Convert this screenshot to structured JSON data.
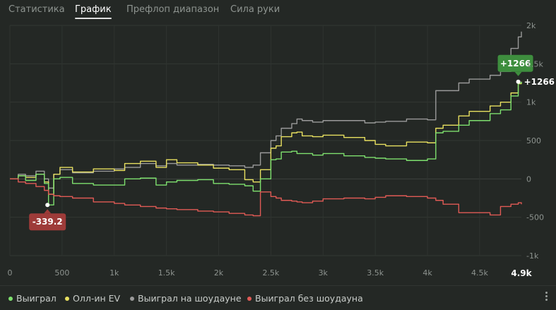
{
  "tabs": [
    {
      "label": "Статистика",
      "active": false
    },
    {
      "label": "График",
      "active": true
    },
    {
      "label": "Префлоп диапазон",
      "active": false
    },
    {
      "label": "Сила руки",
      "active": false
    }
  ],
  "legend": [
    {
      "label": "Выиграл",
      "color": "#7ee06e"
    },
    {
      "label": "Олл-ин EV",
      "color": "#e8e060"
    },
    {
      "label": "Выиграл на шоудауне",
      "color": "#9a9a9a"
    },
    {
      "label": "Выиграл без шоудауна",
      "color": "#e05a55"
    }
  ],
  "chart_data": {
    "type": "line",
    "x_ticks": [
      "0",
      "500",
      "1k",
      "1.5k",
      "2k",
      "2.5k",
      "3k",
      "3.5k",
      "4k",
      "4.5k"
    ],
    "x_tick_values": [
      0,
      500,
      1000,
      1500,
      2000,
      2500,
      3000,
      3500,
      4000,
      4500
    ],
    "x_end_label": "4.9k",
    "y_ticks": [
      "2k",
      "1.5k",
      "1k",
      "500",
      "0",
      "-500",
      "-1k"
    ],
    "y_tick_values": [
      2000,
      1500,
      1000,
      500,
      0,
      -500,
      -1000
    ],
    "xlim": [
      0,
      4900
    ],
    "ylim": [
      -1000,
      2000
    ],
    "grid": true,
    "annotations": {
      "max_label": "+1266",
      "max_value": 1266,
      "max_x": 4870,
      "min_label": "-339.2",
      "min_value": -339.2,
      "min_x": 360,
      "end_label": "+1266"
    },
    "series": [
      {
        "name": "Выиграл на шоудауне",
        "color": "#9a9a9a",
        "x": [
          0,
          80,
          150,
          250,
          330,
          370,
          420,
          480,
          600,
          800,
          1000,
          1100,
          1250,
          1400,
          1500,
          1600,
          1800,
          1950,
          2100,
          2250,
          2330,
          2400,
          2500,
          2550,
          2600,
          2700,
          2750,
          2800,
          2900,
          3000,
          3200,
          3400,
          3500,
          3600,
          3800,
          4000,
          4080,
          4150,
          4300,
          4400,
          4600,
          4700,
          4800,
          4870,
          4900
        ],
        "y": [
          0,
          60,
          40,
          100,
          0,
          -120,
          60,
          120,
          80,
          100,
          130,
          150,
          200,
          170,
          200,
          180,
          190,
          180,
          170,
          150,
          180,
          340,
          500,
          560,
          660,
          720,
          780,
          760,
          740,
          760,
          760,
          730,
          740,
          750,
          780,
          770,
          1150,
          1150,
          1250,
          1300,
          1350,
          1400,
          1700,
          1850,
          1920
        ]
      },
      {
        "name": "Олл-ин EV",
        "color": "#e8e060",
        "x": [
          0,
          80,
          150,
          250,
          330,
          370,
          420,
          480,
          600,
          800,
          1000,
          1100,
          1250,
          1400,
          1500,
          1600,
          1800,
          1950,
          2100,
          2250,
          2330,
          2400,
          2500,
          2550,
          2600,
          2700,
          2750,
          2800,
          2900,
          3000,
          3200,
          3400,
          3500,
          3600,
          3800,
          4000,
          4080,
          4150,
          4300,
          4400,
          4600,
          4700,
          4800,
          4870,
          4900
        ],
        "y": [
          0,
          40,
          20,
          60,
          -40,
          -200,
          60,
          150,
          90,
          130,
          110,
          200,
          230,
          150,
          250,
          210,
          180,
          140,
          120,
          -10,
          -40,
          120,
          400,
          430,
          550,
          600,
          610,
          560,
          550,
          570,
          540,
          500,
          450,
          430,
          480,
          470,
          660,
          700,
          820,
          880,
          950,
          1000,
          1120,
          1240,
          1266
        ]
      },
      {
        "name": "Выиграл",
        "color": "#7ee06e",
        "x": [
          0,
          80,
          150,
          250,
          330,
          370,
          420,
          480,
          600,
          800,
          1000,
          1100,
          1250,
          1400,
          1500,
          1600,
          1800,
          1950,
          2100,
          2250,
          2330,
          2400,
          2500,
          2550,
          2600,
          2700,
          2750,
          2800,
          2900,
          3000,
          3200,
          3400,
          3500,
          3600,
          3800,
          4000,
          4080,
          4150,
          4300,
          4400,
          4600,
          4700,
          4800,
          4870,
          4900
        ],
        "y": [
          0,
          40,
          -20,
          60,
          -60,
          -339.2,
          0,
          20,
          -60,
          -80,
          -80,
          0,
          10,
          -80,
          -40,
          -20,
          -10,
          -60,
          -70,
          -90,
          -160,
          0,
          250,
          260,
          350,
          360,
          330,
          330,
          310,
          330,
          300,
          280,
          270,
          260,
          240,
          260,
          600,
          620,
          700,
          760,
          850,
          900,
          1080,
          1250,
          1266
        ]
      },
      {
        "name": "Выиграл без шоудауна",
        "color": "#e05a55",
        "x": [
          0,
          80,
          150,
          250,
          330,
          370,
          420,
          480,
          600,
          800,
          1000,
          1100,
          1250,
          1400,
          1500,
          1600,
          1800,
          1950,
          2100,
          2250,
          2330,
          2400,
          2500,
          2550,
          2600,
          2700,
          2750,
          2800,
          2900,
          3000,
          3200,
          3400,
          3500,
          3600,
          3800,
          4000,
          4080,
          4150,
          4300,
          4400,
          4600,
          4700,
          4800,
          4870,
          4900
        ],
        "y": [
          0,
          -40,
          -60,
          -100,
          -150,
          -200,
          -220,
          -230,
          -250,
          -300,
          -320,
          -340,
          -360,
          -380,
          -390,
          -400,
          -420,
          -430,
          -450,
          -470,
          -480,
          -170,
          -230,
          -250,
          -280,
          -290,
          -300,
          -310,
          -290,
          -260,
          -250,
          -260,
          -240,
          -220,
          -230,
          -250,
          -280,
          -330,
          -440,
          -440,
          -470,
          -360,
          -330,
          -310,
          -330
        ]
      }
    ]
  }
}
